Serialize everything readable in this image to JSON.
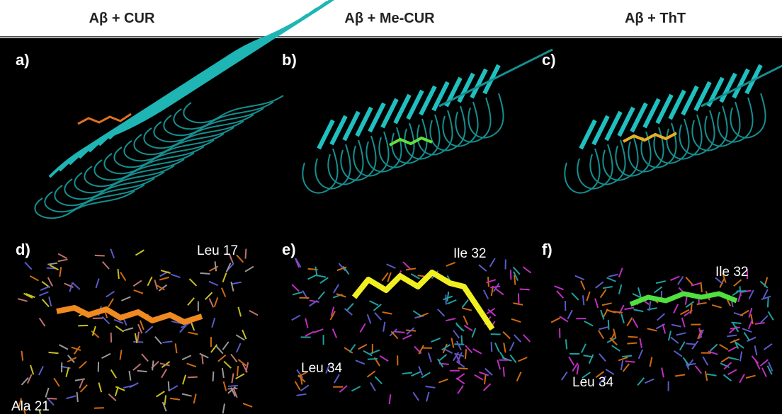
{
  "header": {
    "columns": [
      "Aβ + CUR",
      "Aβ + Me-CUR",
      "Aβ + ThT"
    ]
  },
  "panels": [
    {
      "label": "a)",
      "annotations": []
    },
    {
      "label": "b)",
      "annotations": []
    },
    {
      "label": "c)",
      "annotations": []
    },
    {
      "label": "d)",
      "annotations": [
        "Leu 17",
        "Ala 21"
      ]
    },
    {
      "label": "e)",
      "annotations": [
        "Ile 32",
        "Leu 34"
      ]
    },
    {
      "label": "f)",
      "annotations": [
        "Ile 32",
        "Leu 34"
      ]
    }
  ]
}
